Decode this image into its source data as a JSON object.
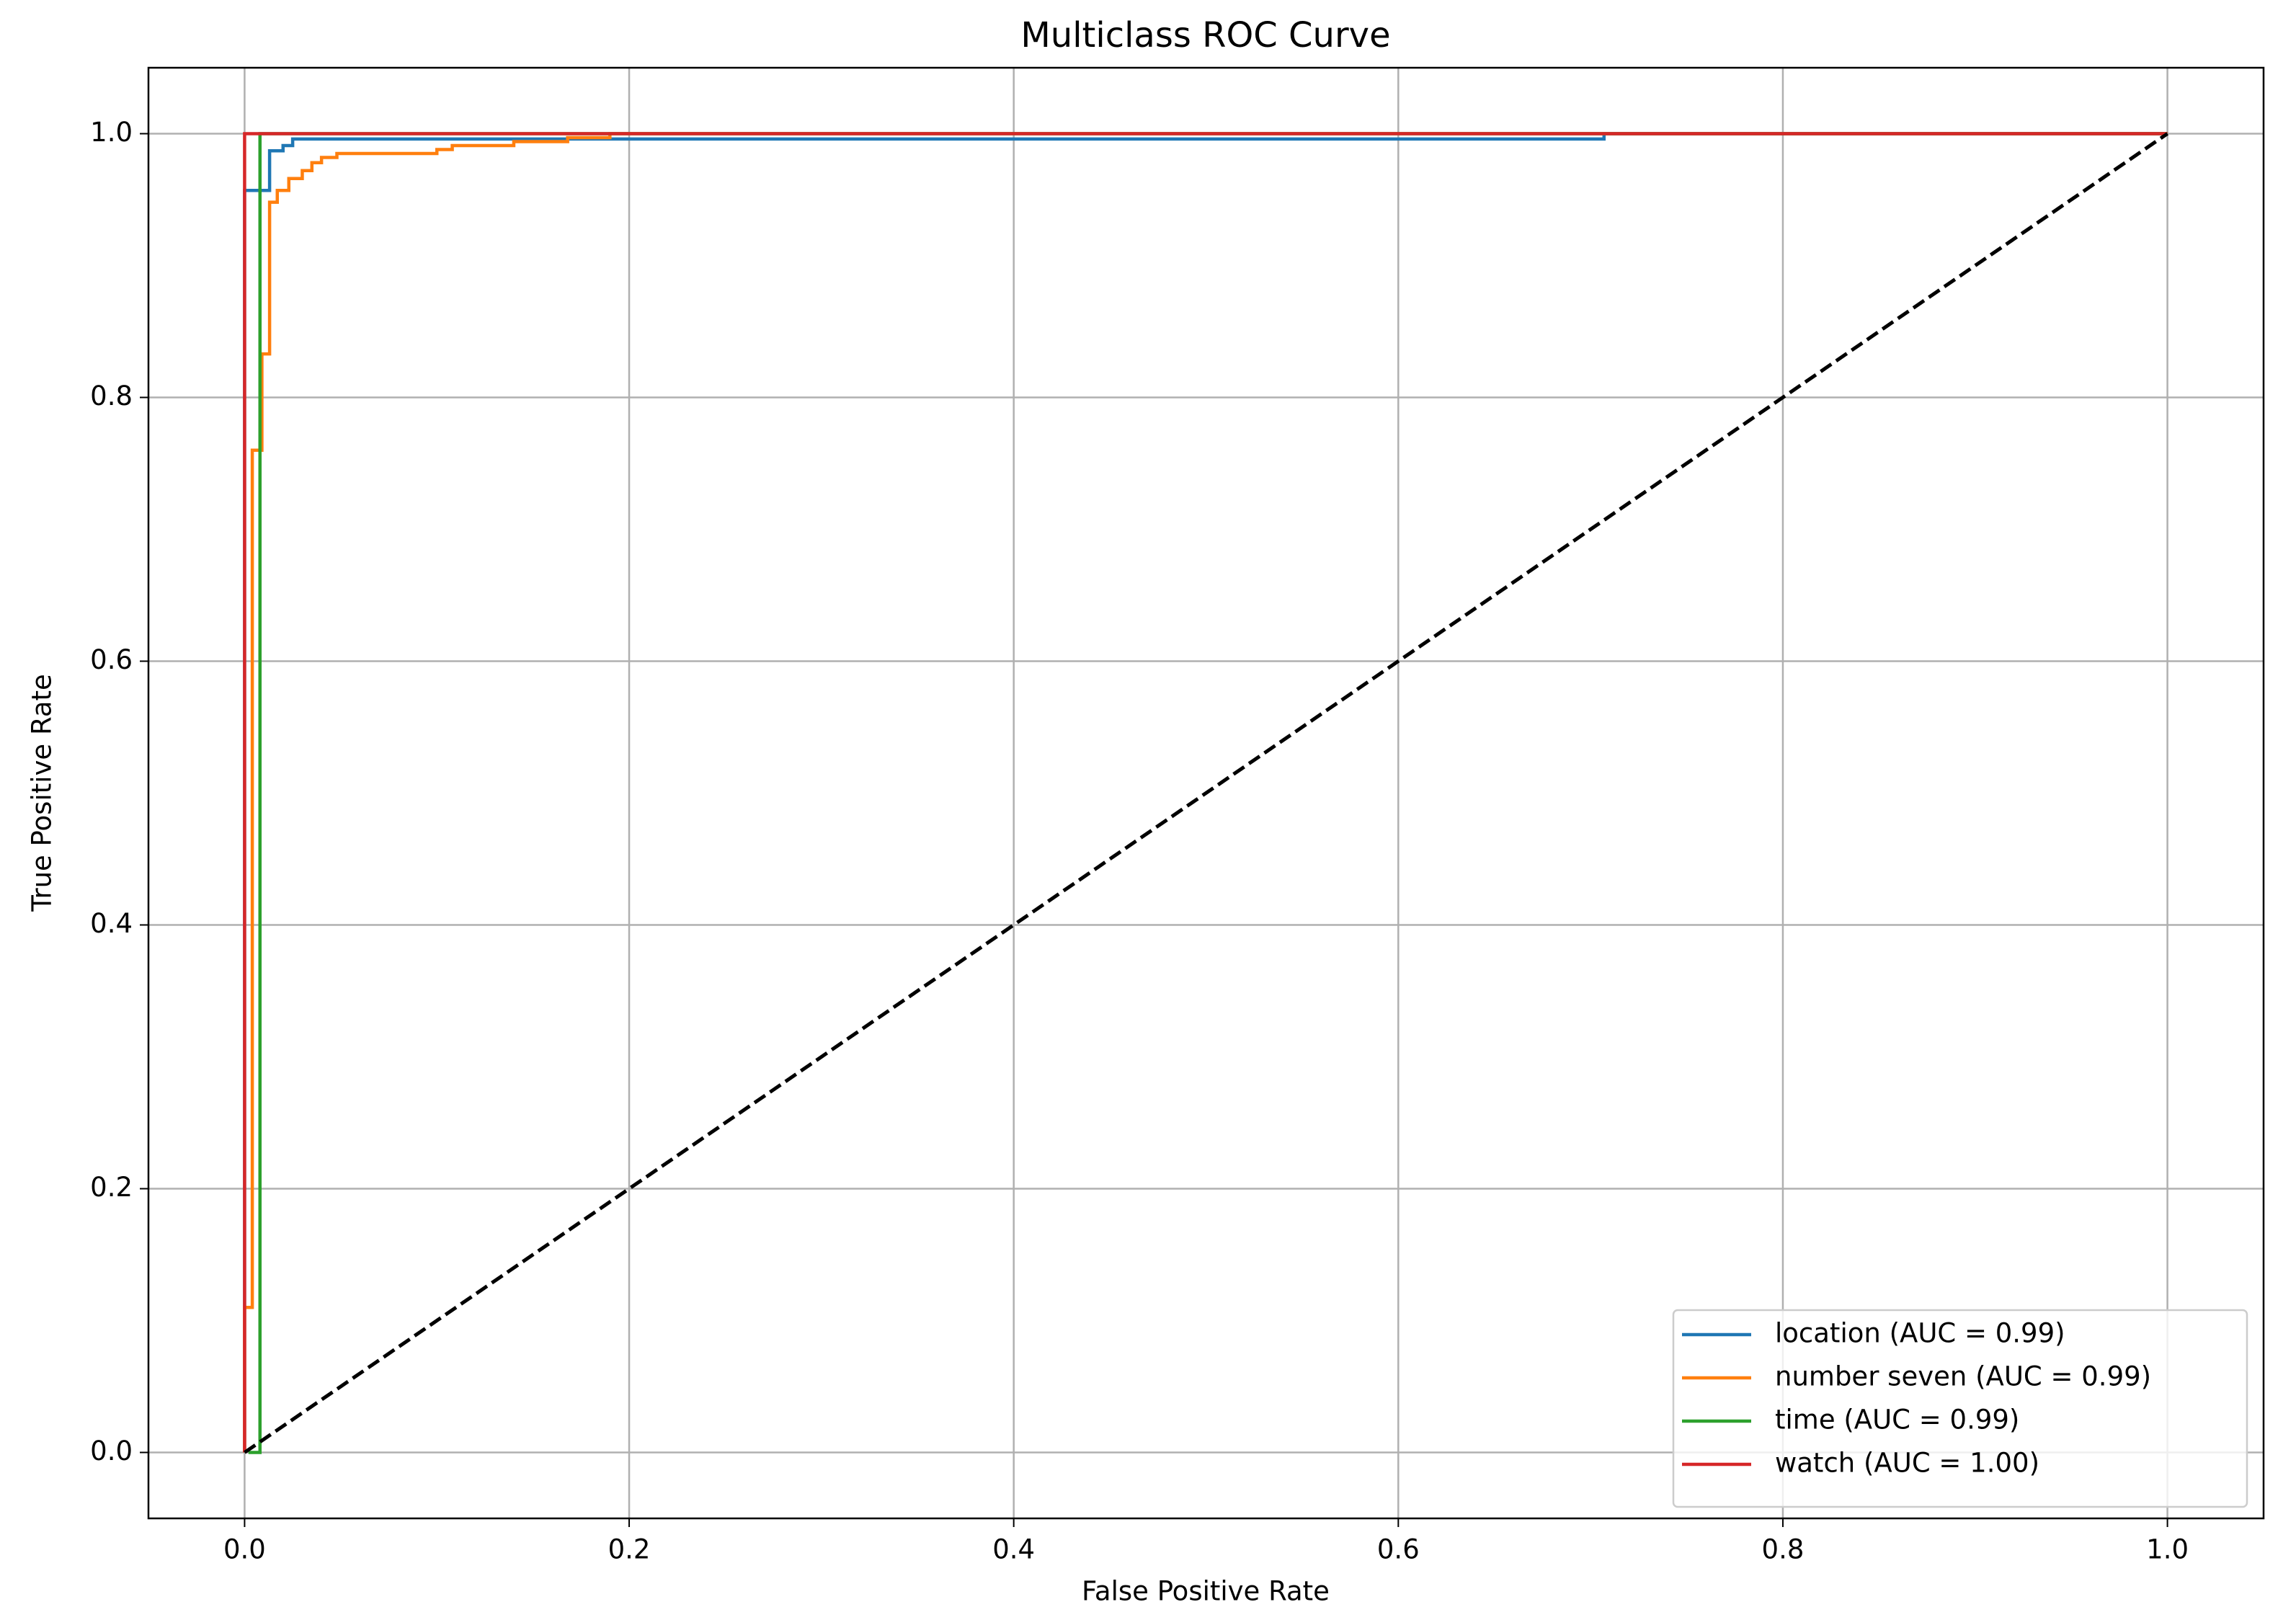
{
  "chart_data": {
    "type": "line",
    "title": "Multiclass ROC Curve",
    "x_label": "False Positive Rate",
    "y_label": "True Positive Rate",
    "xlim": [
      -0.05,
      1.05
    ],
    "ylim": [
      -0.05,
      1.05
    ],
    "xticks": [
      {
        "value": 0,
        "label": "0.0"
      },
      0.2,
      0.4,
      0.6,
      0.8,
      {
        "value": 1,
        "label": "1.0"
      }
    ],
    "yticks": [
      {
        "value": 0,
        "label": "0.0"
      },
      0.2,
      0.4,
      0.6,
      0.8,
      {
        "value": 1,
        "label": "1.0"
      }
    ],
    "grid": true,
    "legend": "lower right",
    "series": [
      {
        "name": "location (AUC = 0.99)",
        "color": "#1f77b4",
        "x": [
          0,
          0,
          0.013,
          0.013,
          0.02,
          0.02,
          0.025,
          0.025,
          0.707,
          0.707,
          1
        ],
        "values": [
          0,
          0.957,
          0.957,
          0.987,
          0.987,
          0.991,
          0.991,
          0.996,
          0.996,
          1,
          1
        ]
      },
      {
        "name": "number seven  (AUC = 0.99)",
        "color": "#ff7f0e",
        "x": [
          0,
          0,
          0.004,
          0.004,
          0.009,
          0.009,
          0.013,
          0.013,
          0.017,
          0.017,
          0.023,
          0.023,
          0.03,
          0.03,
          0.035,
          0.035,
          0.04,
          0.04,
          0.048,
          0.048,
          0.1,
          0.1,
          0.108,
          0.108,
          0.14,
          0.14,
          0.168,
          0.168,
          0.19,
          0.19,
          1
        ],
        "values": [
          0,
          0.11,
          0.11,
          0.76,
          0.76,
          0.833,
          0.833,
          0.948,
          0.948,
          0.957,
          0.957,
          0.966,
          0.966,
          0.972,
          0.972,
          0.978,
          0.978,
          0.982,
          0.982,
          0.985,
          0.985,
          0.988,
          0.988,
          0.991,
          0.991,
          0.994,
          0.994,
          0.997,
          0.997,
          1,
          1
        ]
      },
      {
        "name": "time (AUC = 0.99)",
        "color": "#2ca02c",
        "x": [
          0.002,
          0.008,
          0.008,
          1
        ],
        "values": [
          0,
          0,
          1,
          1
        ]
      },
      {
        "name": "watch (AUC = 1.00)",
        "color": "#d62728",
        "x": [
          0,
          0,
          1
        ],
        "values": [
          0,
          1,
          1
        ]
      }
    ],
    "diagonal": {
      "color": "#000000",
      "x": [
        0,
        1
      ],
      "values": [
        0,
        1
      ]
    }
  }
}
